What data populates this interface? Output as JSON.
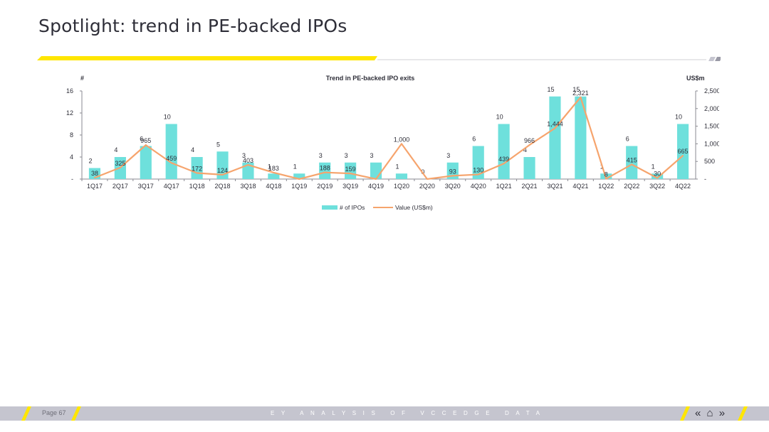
{
  "page": {
    "title": "Spotlight: trend in PE-backed IPOs"
  },
  "footer": {
    "page_label": "Page 67",
    "tagline": "EY ANALYSIS OF VCCEDGE DATA",
    "nav_back": "«",
    "nav_home": "⌂",
    "nav_forward": "»"
  },
  "colors": {
    "bar": "#6ee0dc",
    "line": "#f6a46d",
    "accent": "#ffe600",
    "text": "#2e2e38",
    "footer": "#c5c5cf"
  },
  "chart_data": {
    "type": "bar",
    "title": "Trend in PE-backed IPO exits",
    "left_axis_label": "#",
    "right_axis_label": "US$m",
    "categories": [
      "1Q17",
      "2Q17",
      "3Q17",
      "4Q17",
      "1Q18",
      "2Q18",
      "3Q18",
      "4Q18",
      "1Q19",
      "2Q19",
      "3Q19",
      "4Q19",
      "1Q20",
      "2Q20",
      "3Q20",
      "4Q20",
      "1Q21",
      "2Q21",
      "3Q21",
      "4Q21",
      "1Q22",
      "2Q22",
      "3Q22",
      "4Q22"
    ],
    "series": [
      {
        "name": "# of IPOs",
        "type": "bar",
        "axis": "left",
        "values": [
          2,
          4,
          6,
          10,
          4,
          5,
          3,
          1,
          1,
          3,
          3,
          3,
          1,
          0,
          3,
          6,
          10,
          4,
          15,
          15,
          1,
          6,
          1,
          10
        ]
      },
      {
        "name": "Value (US$m)",
        "type": "line",
        "axis": "right",
        "values": [
          38,
          325,
          965,
          459,
          172,
          124,
          403,
          183,
          null,
          188,
          159,
          null,
          1000,
          0,
          93,
          130,
          439,
          966,
          1444,
          2321,
          8,
          415,
          30,
          665
        ]
      }
    ],
    "left_ticks": [
      "-",
      "4",
      "8",
      "12",
      "16"
    ],
    "left_ylim": [
      0,
      16
    ],
    "right_ticks": [
      "-",
      "500",
      "1,000",
      "1,500",
      "2,000",
      "2,500"
    ],
    "right_ylim": [
      0,
      2500
    ],
    "bar_labels": [
      "2",
      "4",
      "6",
      "10",
      "4",
      "5",
      "3",
      "1",
      "1",
      "3",
      "3",
      "3",
      "1",
      "0",
      "3",
      "6",
      "10",
      "4",
      "15",
      "15",
      "1",
      "6",
      "1",
      "10"
    ],
    "line_labels": [
      "38",
      "325",
      "965",
      "459",
      "172",
      "124",
      "403",
      "183",
      "",
      "188",
      "159",
      "",
      "1,000",
      "",
      "93",
      "130",
      "439",
      "966",
      "1,444",
      "2,321",
      "8",
      "415",
      "30",
      "665"
    ],
    "legend": [
      "# of IPOs",
      "Value (US$m)"
    ],
    "legend_position": "bottom",
    "grid": false
  }
}
